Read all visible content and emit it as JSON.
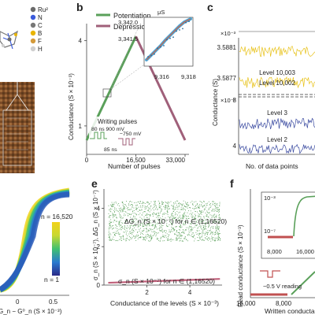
{
  "legend_a": [
    {
      "label": "Ru²",
      "color": "#6a6a6a"
    },
    {
      "label": "N",
      "color": "#3b5bdb"
    },
    {
      "label": "C",
      "color": "#777777"
    },
    {
      "label": "B",
      "color": "#e8b400"
    },
    {
      "label": "F",
      "color": "#d49a3a"
    },
    {
      "label": "H",
      "color": "#cfcfcf"
    }
  ],
  "panels": {
    "b": {
      "letter": "b"
    },
    "c": {
      "letter": "c"
    },
    "e": {
      "letter": "e"
    },
    "f": {
      "letter": "f"
    }
  },
  "chart_data": [
    {
      "id": "b",
      "type": "line",
      "series": [
        {
          "name": "Potentiation",
          "color": "#5aa05a",
          "x": [
            0,
            16500
          ],
          "y": [
            0.5,
            4.15
          ]
        },
        {
          "name": "Depression",
          "color": "#a0607a",
          "x": [
            16500,
            33000
          ],
          "y": [
            4.15,
            0.5
          ]
        }
      ],
      "xlabel": "Number of pulses",
      "ylabel": "Conductance (S × 10⁻³)",
      "xticks": [
        "0",
        "16,500",
        "33,000"
      ],
      "yticks": [
        "1",
        "4"
      ],
      "inset": {
        "unit": "μS",
        "yticks": [
          "3,342.0",
          "3,341.5"
        ],
        "xticks": [
          "9,316",
          "9,318"
        ]
      },
      "annotations": {
        "title": "Writing pulses",
        "pulse_pos": "80 ns 900 mV",
        "pulse_neg": "−750 mV",
        "pulse_width": "85 ns"
      }
    },
    {
      "id": "c",
      "type": "line",
      "ylabel": "Conductance (S)",
      "xlabel": "No. of data points",
      "top_exponent": "×10⁻³",
      "bottom_exponent": "×10⁻⁷",
      "series": [
        {
          "name": "Level 10,003",
          "color": "#e8c21a",
          "tick": "3.5881"
        },
        {
          "name": "Level 10,002",
          "color": "#e8c21a",
          "tick": "3.5877"
        },
        {
          "name": "Level 3",
          "color": "#3a4aa0",
          "tick": "8"
        },
        {
          "name": "Level 2",
          "color": "#3a4aa0",
          "tick": "4"
        }
      ]
    },
    {
      "id": "d",
      "type": "line",
      "colorbar": {
        "top": "n = 16,520",
        "bottom": "n = 1"
      },
      "xlabel": "G_n − G⁰_n (S × 10⁻³)",
      "xticks": [
        "0",
        "0.5"
      ]
    },
    {
      "id": "e",
      "type": "scatter",
      "xlabel": "Conductance of the levels (S × 10⁻³)",
      "ylabel": "σ_n (S × 10⁻⁷), ΔG_n (S × 10⁻⁷)",
      "xticks": [
        "2",
        "4"
      ],
      "yticks": [
        "0",
        "2",
        "4"
      ],
      "xlim": [
        0,
        5.5
      ],
      "ylim": [
        0,
        5
      ],
      "series": [
        {
          "name": "ΔG_n (S × 10⁻⁷) for n ∈ (1,16520)",
          "color": "#5aa05a",
          "y_low": 2.3,
          "y_high": 4.4
        },
        {
          "name": "σ_n (S × 10⁻⁷) for n ∈ (1,16520)",
          "color": "#c0607a",
          "y_start": 0.12,
          "y_end": 0.32
        }
      ]
    },
    {
      "id": "f",
      "type": "line",
      "ylabel": "Read conductance (S × 10⁻³)",
      "xlabel": "Written conductance",
      "xticks": [
        "16,000",
        "8,000"
      ],
      "inset": {
        "yticks": [
          "10⁻³",
          "10⁻⁷"
        ],
        "xticks": [
          "8,000",
          "16,000"
        ]
      },
      "annotation": "−0.5 V reading"
    }
  ]
}
